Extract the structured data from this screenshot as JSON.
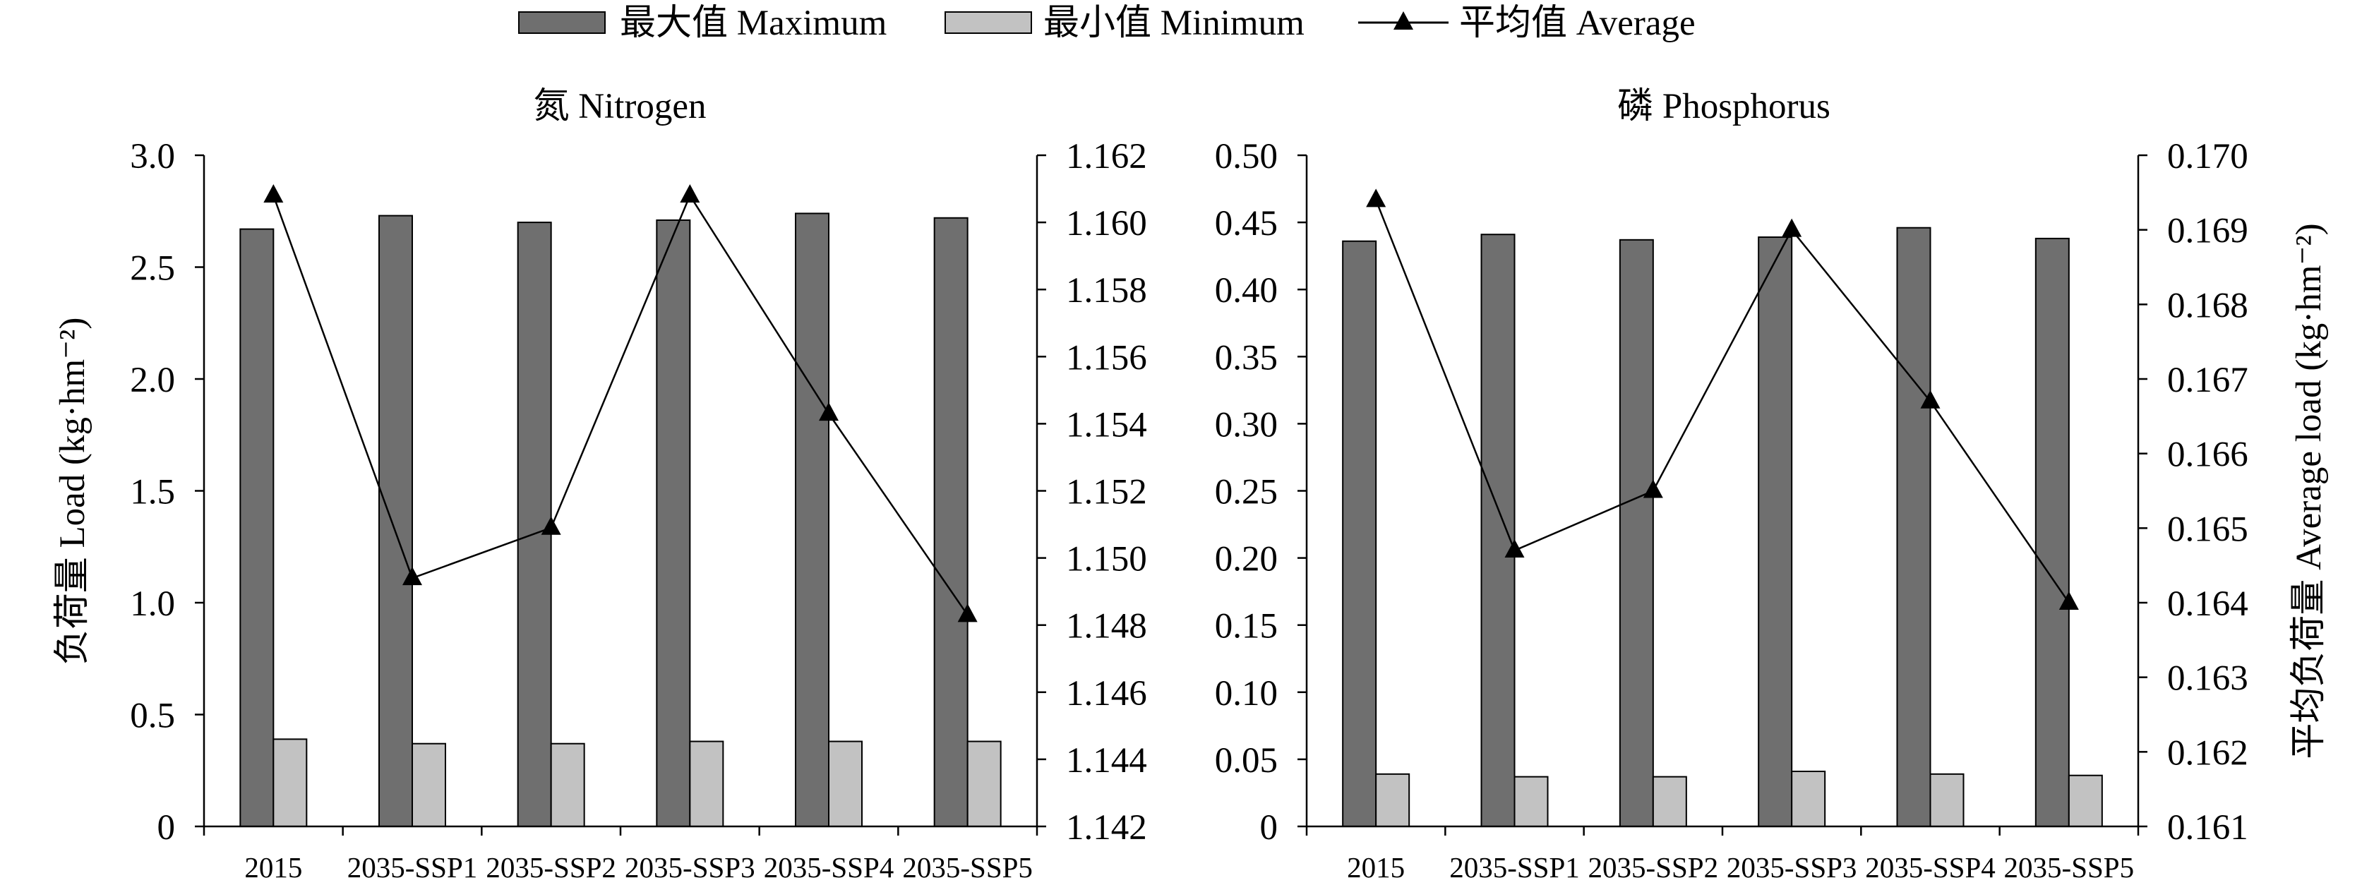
{
  "legend": {
    "placement": "top-center",
    "items": [
      {
        "label": "最大值 Maximum",
        "kind": "bar",
        "color": "#6f6f6f"
      },
      {
        "label": "最小值 Minimum",
        "kind": "bar",
        "color": "#c2c2c2"
      },
      {
        "label": "平均值 Average",
        "kind": "line-triangle",
        "color": "#000000"
      }
    ]
  },
  "chart_data": [
    {
      "type": "bar",
      "title": "氮 Nitrogen",
      "ylabel": "负荷量 Load (kg·hm⁻²)",
      "categories": [
        "2015",
        "2035-SSP1",
        "2035-SSP2",
        "2035-SSP3",
        "2035-SSP4",
        "2035-SSP5"
      ],
      "ylim": [
        0,
        3.0
      ],
      "yticks": [
        "0",
        "0.5",
        "1.0",
        "1.5",
        "2.0",
        "2.5",
        "3.0"
      ],
      "y2lim": [
        1.142,
        1.162
      ],
      "y2ticks": [
        "1.142",
        "1.144",
        "1.146",
        "1.148",
        "1.150",
        "1.152",
        "1.154",
        "1.156",
        "1.158",
        "1.160",
        "1.162"
      ],
      "grid": false,
      "series": [
        {
          "legend": 0,
          "kind": "bar",
          "axis": "left",
          "values": [
            2.67,
            2.73,
            2.7,
            2.71,
            2.74,
            2.72
          ]
        },
        {
          "legend": 1,
          "kind": "bar",
          "axis": "left",
          "values": [
            0.39,
            0.37,
            0.37,
            0.38,
            0.38,
            0.38
          ]
        },
        {
          "legend": 2,
          "kind": "line",
          "axis": "right",
          "values": [
            1.1608,
            1.1494,
            1.1509,
            1.1608,
            1.1543,
            1.1483
          ]
        }
      ]
    },
    {
      "type": "bar",
      "title": "磷 Phosphorus",
      "y2label": "平均负荷量 Average load (kg·hm⁻²)",
      "categories": [
        "2015",
        "2035-SSP1",
        "2035-SSP2",
        "2035-SSP3",
        "2035-SSP4",
        "2035-SSP5"
      ],
      "ylim": [
        0,
        0.5
      ],
      "yticks": [
        "0",
        "0.05",
        "0.10",
        "0.15",
        "0.20",
        "0.25",
        "0.30",
        "0.35",
        "0.40",
        "0.45",
        "0.50"
      ],
      "y2lim": [
        0.161,
        0.17
      ],
      "y2ticks": [
        "0.161",
        "0.162",
        "0.163",
        "0.164",
        "0.165",
        "0.166",
        "0.167",
        "0.168",
        "0.169",
        "0.170"
      ],
      "grid": false,
      "series": [
        {
          "legend": 0,
          "kind": "bar",
          "axis": "left",
          "values": [
            0.436,
            0.441,
            0.437,
            0.439,
            0.446,
            0.438
          ]
        },
        {
          "legend": 1,
          "kind": "bar",
          "axis": "left",
          "values": [
            0.039,
            0.037,
            0.037,
            0.041,
            0.039,
            0.038
          ]
        },
        {
          "legend": 2,
          "kind": "line",
          "axis": "right",
          "values": [
            0.1694,
            0.1647,
            0.1655,
            0.169,
            0.1667,
            0.164
          ]
        }
      ]
    }
  ]
}
